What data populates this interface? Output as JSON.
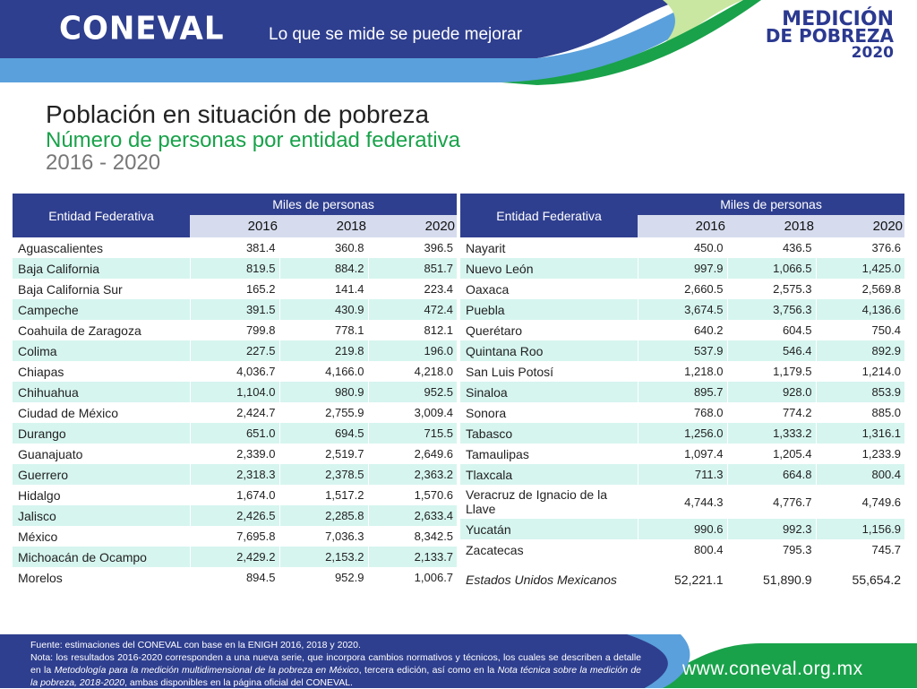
{
  "header": {
    "logo": "CONEVAL",
    "tagline": "Lo que se mide se puede mejorar",
    "badge_line1": "MEDICIÓN",
    "badge_line2": "DE POBREZA",
    "badge_line3": "2020"
  },
  "titles": {
    "line1_a": "Población en situación de ",
    "line1_b": "pobreza",
    "line2": "Número de personas por entidad federativa",
    "line3": "2016 - 2020"
  },
  "table": {
    "col_entity": "Entidad Federativa",
    "col_group": "Miles de personas",
    "years": [
      "2016",
      "2018",
      "2020"
    ],
    "left_rows": [
      {
        "name": "Aguascalientes",
        "v2016": "381.4",
        "v2018": "360.8",
        "v2020": "396.5"
      },
      {
        "name": "Baja California",
        "v2016": "819.5",
        "v2018": "884.2",
        "v2020": "851.7"
      },
      {
        "name": "Baja California Sur",
        "v2016": "165.2",
        "v2018": "141.4",
        "v2020": "223.4"
      },
      {
        "name": "Campeche",
        "v2016": "391.5",
        "v2018": "430.9",
        "v2020": "472.4"
      },
      {
        "name": "Coahuila de Zaragoza",
        "v2016": "799.8",
        "v2018": "778.1",
        "v2020": "812.1"
      },
      {
        "name": "Colima",
        "v2016": "227.5",
        "v2018": "219.8",
        "v2020": "196.0"
      },
      {
        "name": "Chiapas",
        "v2016": "4,036.7",
        "v2018": "4,166.0",
        "v2020": "4,218.0"
      },
      {
        "name": "Chihuahua",
        "v2016": "1,104.0",
        "v2018": "980.9",
        "v2020": "952.5"
      },
      {
        "name": "Ciudad de México",
        "v2016": "2,424.7",
        "v2018": "2,755.9",
        "v2020": "3,009.4"
      },
      {
        "name": "Durango",
        "v2016": "651.0",
        "v2018": "694.5",
        "v2020": "715.5"
      },
      {
        "name": "Guanajuato",
        "v2016": "2,339.0",
        "v2018": "2,519.7",
        "v2020": "2,649.6"
      },
      {
        "name": "Guerrero",
        "v2016": "2,318.3",
        "v2018": "2,378.5",
        "v2020": "2,363.2"
      },
      {
        "name": "Hidalgo",
        "v2016": "1,674.0",
        "v2018": "1,517.2",
        "v2020": "1,570.6"
      },
      {
        "name": "Jalisco",
        "v2016": "2,426.5",
        "v2018": "2,285.8",
        "v2020": "2,633.4"
      },
      {
        "name": "México",
        "v2016": "7,695.8",
        "v2018": "7,036.3",
        "v2020": "8,342.5"
      },
      {
        "name": "Michoacán de Ocampo",
        "v2016": "2,429.2",
        "v2018": "2,153.2",
        "v2020": "2,133.7"
      },
      {
        "name": "Morelos",
        "v2016": "894.5",
        "v2018": "952.9",
        "v2020": "1,006.7"
      }
    ],
    "right_rows": [
      {
        "name": "Nayarit",
        "v2016": "450.0",
        "v2018": "436.5",
        "v2020": "376.6"
      },
      {
        "name": "Nuevo León",
        "v2016": "997.9",
        "v2018": "1,066.5",
        "v2020": "1,425.0"
      },
      {
        "name": "Oaxaca",
        "v2016": "2,660.5",
        "v2018": "2,575.3",
        "v2020": "2,569.8"
      },
      {
        "name": "Puebla",
        "v2016": "3,674.5",
        "v2018": "3,756.3",
        "v2020": "4,136.6"
      },
      {
        "name": "Querétaro",
        "v2016": "640.2",
        "v2018": "604.5",
        "v2020": "750.4"
      },
      {
        "name": "Quintana Roo",
        "v2016": "537.9",
        "v2018": "546.4",
        "v2020": "892.9"
      },
      {
        "name": "San Luis Potosí",
        "v2016": "1,218.0",
        "v2018": "1,179.5",
        "v2020": "1,214.0"
      },
      {
        "name": "Sinaloa",
        "v2016": "895.7",
        "v2018": "928.0",
        "v2020": "853.9"
      },
      {
        "name": "Sonora",
        "v2016": "768.0",
        "v2018": "774.2",
        "v2020": "885.0"
      },
      {
        "name": "Tabasco",
        "v2016": "1,256.0",
        "v2018": "1,333.2",
        "v2020": "1,316.1"
      },
      {
        "name": "Tamaulipas",
        "v2016": "1,097.4",
        "v2018": "1,205.4",
        "v2020": "1,233.9"
      },
      {
        "name": "Tlaxcala",
        "v2016": "711.3",
        "v2018": "664.8",
        "v2020": "800.4"
      },
      {
        "name": "Veracruz de Ignacio de la Llave",
        "v2016": "4,744.3",
        "v2018": "4,776.7",
        "v2020": "4,749.6"
      },
      {
        "name": "Yucatán",
        "v2016": "990.6",
        "v2018": "992.3",
        "v2020": "1,156.9"
      },
      {
        "name": "Zacatecas",
        "v2016": "800.4",
        "v2018": "795.3",
        "v2020": "745.7"
      }
    ],
    "total": {
      "name": "Estados Unidos Mexicanos",
      "v2016": "52,221.1",
      "v2018": "51,890.9",
      "v2020": "55,654.2"
    }
  },
  "footer": {
    "source": "Fuente: estimaciones del CONEVAL con base en la ENIGH 2016, 2018 y 2020.",
    "note_a": "Nota: los resultados 2016-2020 corresponden a una nueva serie, que incorpora cambios normativos y técnicos, los cuales se describen a detalle en la ",
    "note_em1": "Metodología para la medición multidimensional de la pobreza en México",
    "note_b": ", tercera edición, así como en la ",
    "note_em2": "Nota técnica sobre la medición de la pobreza, 2018-2020",
    "note_c": ", ambas disponibles en la página oficial del CONEVAL.",
    "url": "www.coneval.org.mx"
  },
  "colors": {
    "primary_blue": "#2f3f8f",
    "accent_green": "#19a24a",
    "row_teal": "#d6f5ef",
    "year_header": "#d6dcee"
  }
}
